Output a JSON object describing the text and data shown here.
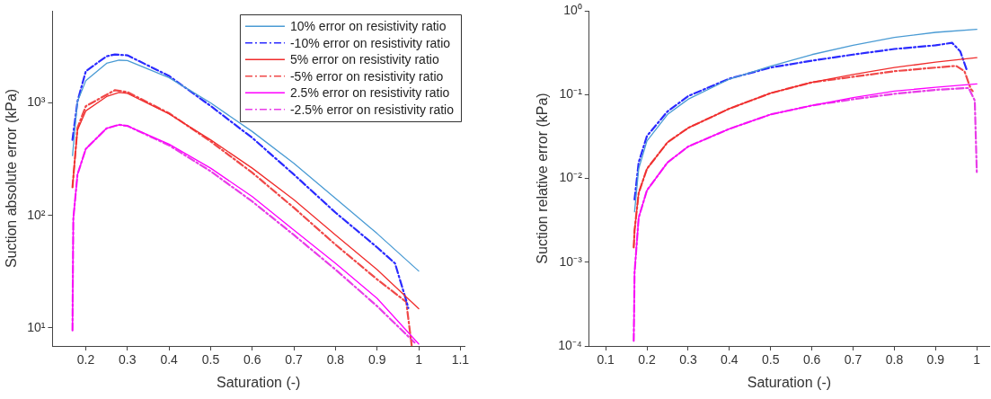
{
  "chart_data": [
    {
      "type": "line",
      "xlabel": "Saturation (-)",
      "ylabel": "Suction absolute error (kPa)",
      "log": "y",
      "xlim": [
        0.12,
        1.11
      ],
      "ylim": [
        6.9,
        6600
      ],
      "xticks": [
        0.2,
        0.3,
        0.4,
        0.5,
        0.6,
        0.7,
        0.8,
        0.9,
        1,
        1.1
      ],
      "yticks": [
        {
          "value": 10,
          "label": "10¹"
        },
        {
          "value": 100,
          "label": "10²"
        },
        {
          "value": 1000,
          "label": "10³"
        }
      ],
      "legend": "top right",
      "grid": false,
      "marker": "none",
      "series": [
        {
          "name": "10% error on resistivity ratio",
          "color": "#4a9bd4",
          "line_style": "solid",
          "x": [
            0.168,
            0.18,
            0.2,
            0.25,
            0.28,
            0.3,
            0.4,
            0.5,
            0.6,
            0.7,
            0.8,
            0.9,
            1
          ],
          "values": [
            340,
            1030,
            1575,
            2250,
            2400,
            2380,
            1680,
            1000,
            557,
            290,
            142,
            69,
            32
          ]
        },
        {
          "name": "-10% error on resistivity ratio",
          "color": "#2a2aff",
          "line_style": "dashdot",
          "x": [
            0.168,
            0.18,
            0.2,
            0.25,
            0.27,
            0.3,
            0.4,
            0.5,
            0.6,
            0.7,
            0.8,
            0.9,
            0.943,
            0.969,
            0.975
          ],
          "values": [
            470,
            1030,
            1915,
            2600,
            2700,
            2650,
            1740,
            940,
            490,
            231,
            106,
            52,
            37.5,
            18,
            15
          ]
        },
        {
          "name": "5% error on resistivity ratio",
          "color": "#f02c2c",
          "line_style": "solid",
          "x": [
            0.168,
            0.18,
            0.2,
            0.25,
            0.28,
            0.3,
            0.4,
            0.5,
            0.6,
            0.7,
            0.8,
            0.9,
            1
          ],
          "values": [
            178,
            575,
            850,
            1140,
            1240,
            1215,
            800,
            470,
            263,
            138,
            67,
            33,
            14.8
          ]
        },
        {
          "name": "-5% error on resistivity ratio",
          "color": "#f04848",
          "line_style": "dashdot",
          "x": [
            0.168,
            0.18,
            0.2,
            0.27,
            0.3,
            0.4,
            0.5,
            0.6,
            0.7,
            0.8,
            0.9,
            0.97,
            0.983
          ],
          "values": [
            178,
            600,
            935,
            1300,
            1250,
            810,
            455,
            240,
            117,
            55,
            27,
            17,
            7
          ]
        },
        {
          "name": "2.5% error on resistivity ratio",
          "color": "#ff00ff",
          "line_style": "solid",
          "x": [
            0.168,
            0.17,
            0.18,
            0.2,
            0.25,
            0.28,
            0.3,
            0.4,
            0.5,
            0.6,
            0.7,
            0.8,
            0.9,
            1
          ],
          "values": [
            9.5,
            93,
            231,
            390,
            595,
            640,
            625,
            430,
            263,
            147,
            74,
            37.5,
            18.3,
            7.2
          ]
        },
        {
          "name": "-2.5% error on resistivity ratio",
          "color": "#e83ce8",
          "line_style": "dashdot",
          "x": [
            0.168,
            0.17,
            0.18,
            0.2,
            0.25,
            0.28,
            0.3,
            0.4,
            0.5,
            0.6,
            0.7,
            0.8,
            0.9,
            0.99
          ],
          "values": [
            9.5,
            93,
            231,
            390,
            595,
            640,
            625,
            420,
            247,
            133,
            67,
            33,
            15.6,
            7.4
          ]
        }
      ]
    },
    {
      "type": "line",
      "xlabel": "Saturation (-)",
      "ylabel": "Suction relative error (kPa)",
      "log": "y",
      "xlim": [
        0.06,
        1.03
      ],
      "ylim": [
        0.0001,
        1
      ],
      "xticks": [
        0.1,
        0.2,
        0.3,
        0.4,
        0.5,
        0.6,
        0.7,
        0.8,
        0.9,
        1
      ],
      "yticks": [
        {
          "value": 0.0001,
          "label": "10⁻⁴"
        },
        {
          "value": 0.001,
          "label": "10⁻³"
        },
        {
          "value": 0.01,
          "label": "10⁻²"
        },
        {
          "value": 0.1,
          "label": "10⁻¹"
        },
        {
          "value": 1,
          "label": "10⁰"
        }
      ],
      "legend": false,
      "grid": false,
      "marker": "none",
      "series": [
        {
          "color": "#4a9bd4",
          "line_style": "solid",
          "x": [
            0.17,
            0.18,
            0.2,
            0.25,
            0.3,
            0.4,
            0.5,
            0.6,
            0.7,
            0.8,
            0.9,
            1
          ],
          "values": [
            0.004,
            0.013,
            0.028,
            0.058,
            0.088,
            0.153,
            0.218,
            0.3,
            0.387,
            0.48,
            0.553,
            0.6
          ]
        },
        {
          "color": "#2a2aff",
          "line_style": "dashdot",
          "x": [
            0.17,
            0.18,
            0.2,
            0.25,
            0.3,
            0.4,
            0.5,
            0.6,
            0.7,
            0.8,
            0.9,
            0.94,
            0.96,
            0.975
          ],
          "values": [
            0.0056,
            0.0155,
            0.032,
            0.063,
            0.096,
            0.155,
            0.21,
            0.254,
            0.3,
            0.35,
            0.387,
            0.415,
            0.327,
            0.2
          ]
        },
        {
          "color": "#f02c2c",
          "line_style": "solid",
          "x": [
            0.168,
            0.17,
            0.18,
            0.2,
            0.25,
            0.3,
            0.4,
            0.5,
            0.6,
            0.7,
            0.8,
            0.9,
            1
          ],
          "values": [
            0.0015,
            0.0024,
            0.0067,
            0.013,
            0.027,
            0.04,
            0.068,
            0.104,
            0.14,
            0.174,
            0.21,
            0.244,
            0.276
          ]
        },
        {
          "color": "#f04848",
          "line_style": "dashdot",
          "x": [
            0.168,
            0.17,
            0.18,
            0.2,
            0.25,
            0.3,
            0.4,
            0.5,
            0.6,
            0.7,
            0.8,
            0.9,
            0.95,
            0.97,
            0.985,
            0.99
          ],
          "values": [
            0.0015,
            0.0024,
            0.0067,
            0.013,
            0.027,
            0.04,
            0.068,
            0.104,
            0.14,
            0.163,
            0.19,
            0.21,
            0.22,
            0.19,
            0.118,
            0.11
          ]
        },
        {
          "color": "#ff00ff",
          "line_style": "solid",
          "x": [
            0.168,
            0.17,
            0.18,
            0.2,
            0.25,
            0.3,
            0.4,
            0.5,
            0.6,
            0.7,
            0.8,
            0.9,
            1
          ],
          "values": [
            0.000115,
            0.00075,
            0.0034,
            0.0072,
            0.0155,
            0.024,
            0.039,
            0.058,
            0.074,
            0.092,
            0.11,
            0.122,
            0.134
          ]
        },
        {
          "color": "#e83ce8",
          "line_style": "dashdot",
          "x": [
            0.168,
            0.17,
            0.18,
            0.2,
            0.25,
            0.3,
            0.4,
            0.5,
            0.6,
            0.7,
            0.8,
            0.9,
            0.98,
            0.995,
            1
          ],
          "values": [
            0.000115,
            0.00075,
            0.0034,
            0.0072,
            0.0155,
            0.024,
            0.039,
            0.058,
            0.074,
            0.088,
            0.102,
            0.114,
            0.12,
            0.085,
            0.0116
          ]
        }
      ]
    }
  ]
}
